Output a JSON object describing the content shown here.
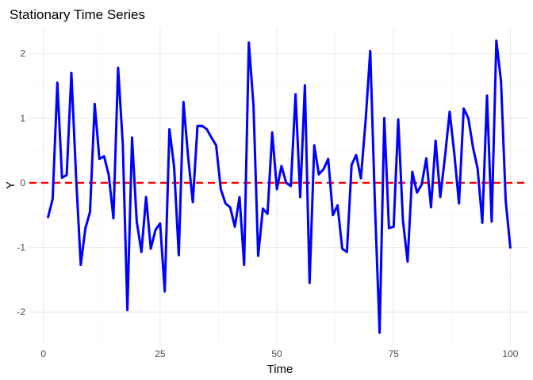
{
  "chart_data": {
    "type": "line",
    "title": "Stationary Time Series",
    "xlabel": "Time",
    "ylabel": "Y",
    "xlim": [
      -3,
      104
    ],
    "ylim": [
      -2.5,
      2.4
    ],
    "x_ticks": [
      0,
      25,
      50,
      75,
      100
    ],
    "y_ticks": [
      -2,
      -1,
      0,
      1,
      2
    ],
    "x_tick_labels": [
      "0",
      "25",
      "50",
      "75",
      "100"
    ],
    "y_tick_labels": [
      "-2",
      "-1",
      "0",
      "1",
      "2"
    ],
    "grid": true,
    "reference_line": {
      "y": 0,
      "color": "#ff0000",
      "style": "dashed"
    },
    "series": [
      {
        "color": "#0000ff",
        "x": [
          1,
          2,
          3,
          4,
          5,
          6,
          7,
          8,
          9,
          10,
          11,
          12,
          13,
          14,
          15,
          16,
          17,
          18,
          19,
          20,
          21,
          22,
          23,
          24,
          25,
          26,
          27,
          28,
          29,
          30,
          31,
          32,
          33,
          34,
          35,
          36,
          37,
          38,
          39,
          40,
          41,
          42,
          43,
          44,
          45,
          46,
          47,
          48,
          49,
          50,
          51,
          52,
          53,
          54,
          55,
          56,
          57,
          58,
          59,
          60,
          61,
          62,
          63,
          64,
          65,
          66,
          67,
          68,
          69,
          70,
          71,
          72,
          73,
          74,
          75,
          76,
          77,
          78,
          79,
          80,
          81,
          82,
          83,
          84,
          85,
          86,
          87,
          88,
          89,
          90,
          91,
          92,
          93,
          94,
          95,
          96,
          97,
          98,
          99,
          100
        ],
        "values": [
          -0.53,
          -0.25,
          1.55,
          0.08,
          0.12,
          1.7,
          0.1,
          -1.27,
          -0.7,
          -0.45,
          1.22,
          0.37,
          0.41,
          0.12,
          -0.55,
          1.78,
          0.6,
          -1.97,
          0.7,
          -0.6,
          -1.07,
          -0.22,
          -1.02,
          -0.73,
          -0.63,
          -1.68,
          0.83,
          0.25,
          -1.12,
          1.25,
          0.4,
          -0.3,
          0.88,
          0.88,
          0.83,
          0.7,
          0.58,
          -0.1,
          -0.32,
          -0.38,
          -0.68,
          -0.22,
          -1.27,
          2.17,
          1.2,
          -1.13,
          -0.4,
          -0.48,
          0.78,
          -0.1,
          0.26,
          0.0,
          -0.05,
          1.37,
          -0.22,
          1.51,
          -1.55,
          0.58,
          0.13,
          0.21,
          0.37,
          -0.5,
          -0.35,
          -1.02,
          -1.07,
          0.28,
          0.43,
          0.07,
          0.95,
          2.04,
          -0.33,
          -2.32,
          1.0,
          -0.7,
          -0.68,
          0.98,
          -0.58,
          -1.22,
          0.17,
          -0.15,
          -0.03,
          0.38,
          -0.38,
          0.65,
          -0.22,
          0.4,
          1.1,
          0.45,
          -0.32,
          1.15,
          1.0,
          0.55,
          0.22,
          -0.62,
          1.35,
          -0.6,
          2.2,
          1.57,
          -0.28,
          -1.0
        ]
      }
    ]
  }
}
